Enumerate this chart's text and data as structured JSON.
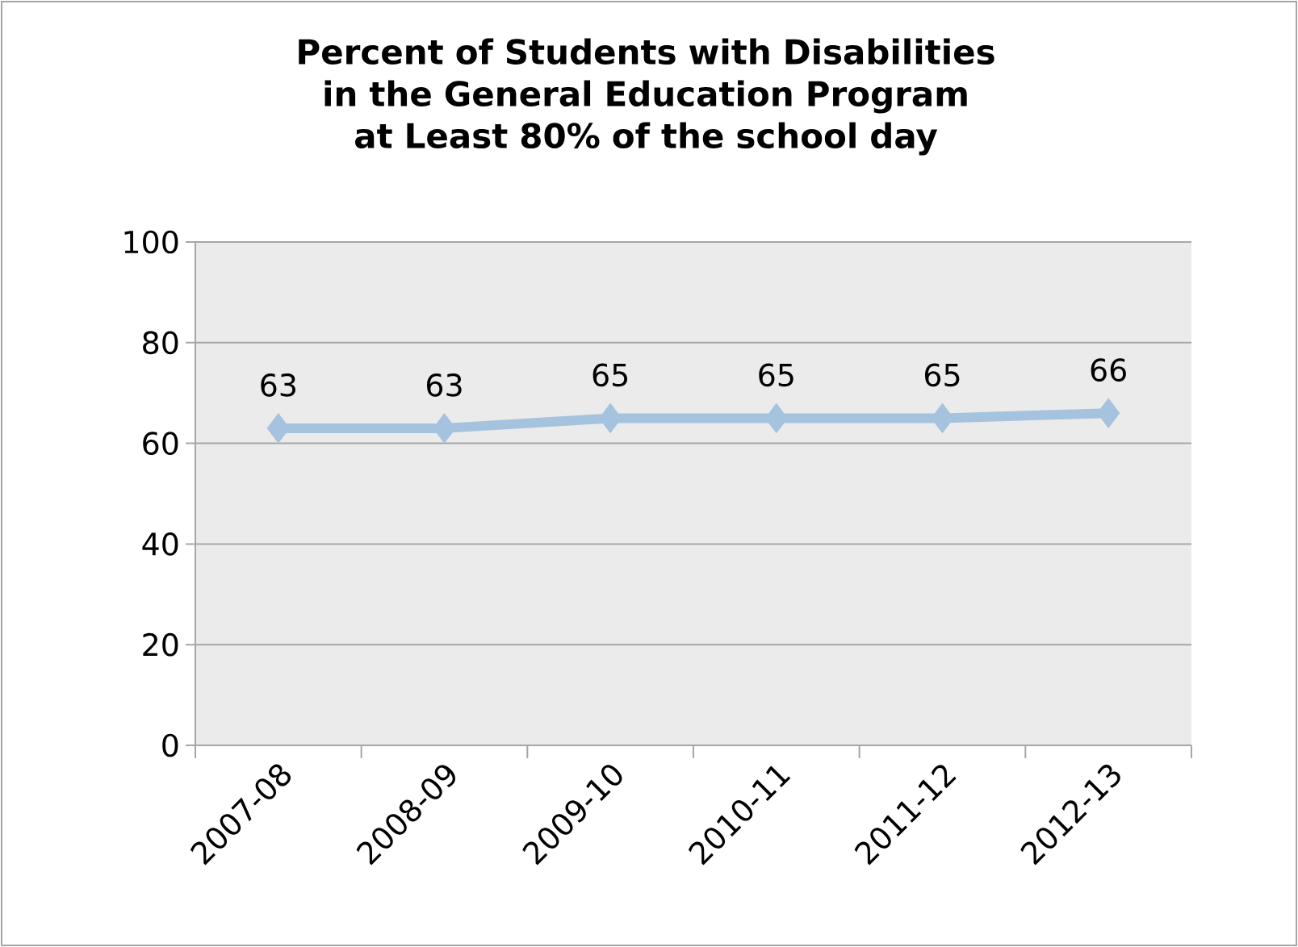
{
  "chart_data": {
    "type": "line",
    "title": "Percent of Students with Disabilities in the General Education Program at Least 80% of the school day",
    "categories": [
      "2007-08",
      "2008-09",
      "2009-10",
      "2010-11",
      "2011-12",
      "2012-13"
    ],
    "values": [
      63,
      63,
      65,
      65,
      65,
      66
    ],
    "color": "#a5c3de",
    "ylim": [
      0,
      100
    ],
    "yticks": [
      0,
      20,
      40,
      60,
      80,
      100
    ],
    "grid": "y",
    "marker": "diamond",
    "line_style": "solid",
    "data_labels": true
  }
}
